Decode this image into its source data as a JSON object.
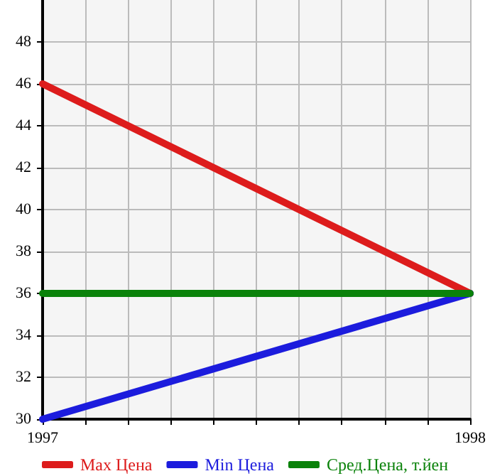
{
  "chart_data": {
    "type": "line",
    "x": [
      1997,
      1998
    ],
    "xlim": [
      1997,
      1998
    ],
    "xticks": [
      1997,
      {
        "value": 1997.1,
        "label": null
      },
      {
        "value": 1997.2,
        "label": null
      },
      {
        "value": 1997.3,
        "label": null
      },
      {
        "value": 1997.4,
        "label": null
      },
      {
        "value": 1997.5,
        "label": null
      },
      {
        "value": 1997.6,
        "label": null
      },
      {
        "value": 1997.7,
        "label": null
      },
      {
        "value": 1997.8,
        "label": null
      },
      {
        "value": 1997.9,
        "label": null
      },
      1998
    ],
    "ylim": [
      30,
      50
    ],
    "yticks": [
      30,
      32,
      34,
      36,
      38,
      40,
      42,
      44,
      46,
      48
    ],
    "series": [
      {
        "name": "Max Цена",
        "color": "#dd1c1c",
        "values": [
          46,
          36
        ]
      },
      {
        "name": "Min Цена",
        "color": "#1c1cdd",
        "values": [
          30,
          36
        ]
      },
      {
        "name": "Сред.Цена, т.йен",
        "color": "#0a820a",
        "values": [
          36,
          36
        ]
      }
    ],
    "grid": true,
    "legend": "bottom",
    "marker": "none",
    "line_style": "solid"
  }
}
